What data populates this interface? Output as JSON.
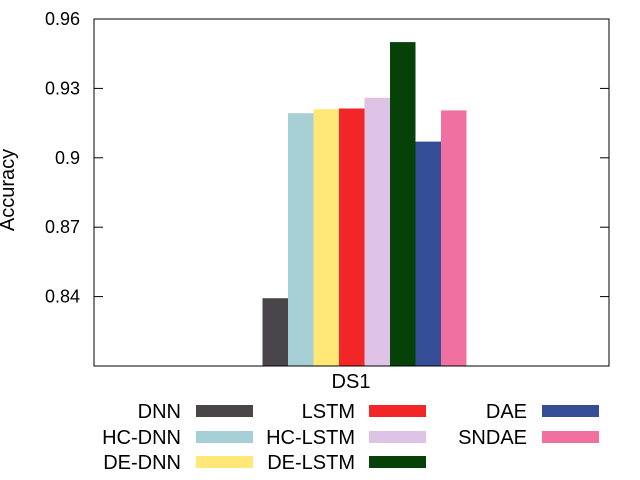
{
  "chart_data": {
    "type": "bar",
    "categories": [
      "DS1"
    ],
    "ylabel": "Accuracy",
    "xlabel": "",
    "ylim": [
      0.81,
      0.96
    ],
    "yticks": [
      "0.84",
      "0.87",
      "0.9",
      "0.93",
      "0.96"
    ],
    "grid": false,
    "legend_position": "bottom",
    "series": [
      {
        "name": "DNN",
        "values": [
          0.8393
        ],
        "color": "#4a4548"
      },
      {
        "name": "HC-DNN",
        "values": [
          0.9193
        ],
        "color": "#a6cfd5"
      },
      {
        "name": "DE-DNN",
        "values": [
          0.921
        ],
        "color": "#ffe878"
      },
      {
        "name": "LSTM",
        "values": [
          0.9213
        ],
        "color": "#f22626"
      },
      {
        "name": "HC-LSTM",
        "values": [
          0.926
        ],
        "color": "#dfc3e6"
      },
      {
        "name": "DE-LSTM",
        "values": [
          0.95
        ],
        "color": "#064108"
      },
      {
        "name": "DAE",
        "values": [
          0.907
        ],
        "color": "#344d94"
      },
      {
        "name": "SNDAE",
        "values": [
          0.9205
        ],
        "color": "#f0709f"
      }
    ]
  }
}
